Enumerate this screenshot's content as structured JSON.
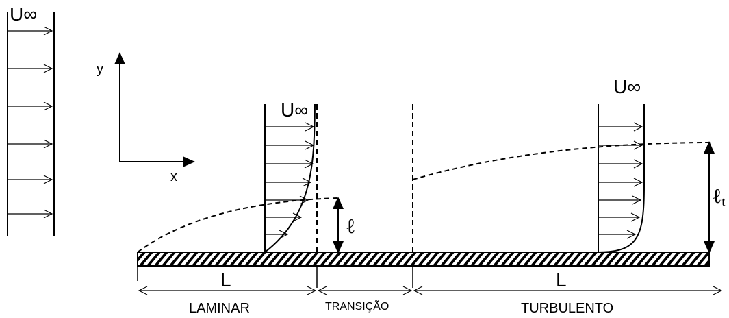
{
  "freestream_label": "U∞",
  "axes": {
    "y": "y",
    "x": "x"
  },
  "thickness_labels": {
    "laminar": "ℓ",
    "turbulent": "ℓ",
    "turbulent_subscript": "t"
  },
  "lengths": {
    "laminar": "L",
    "turbulent": "L"
  },
  "regions": {
    "laminar": "LAMINAR",
    "transition": "TRANSIÇÃO",
    "turbulent": "TURBULENTO"
  }
}
